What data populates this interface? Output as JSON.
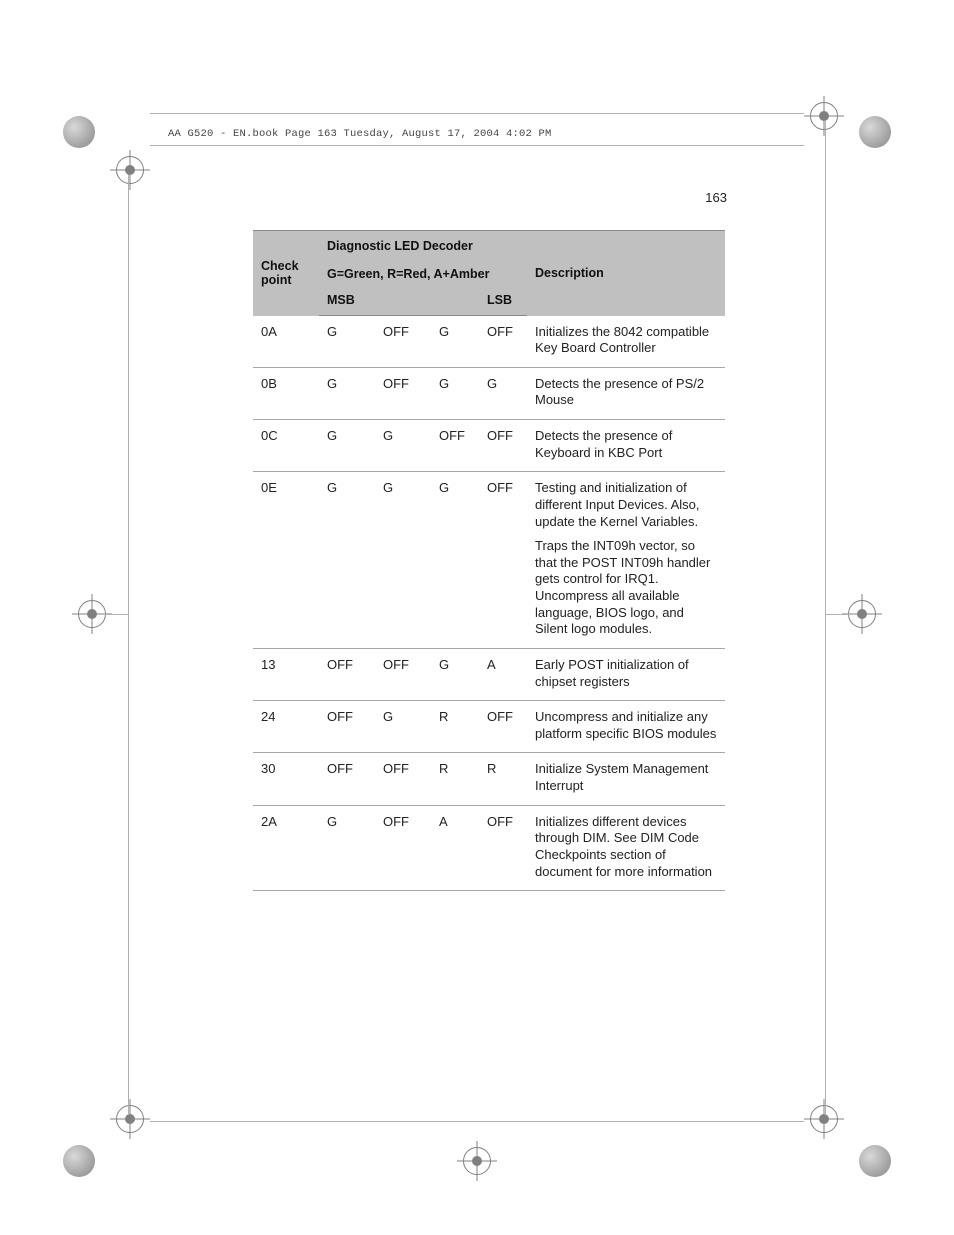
{
  "doc_header": "AA G520 - EN.book  Page 163  Tuesday, August 17, 2004  4:02 PM",
  "page_number": "163",
  "table": {
    "header": {
      "checkpoint": "Check point",
      "diag_title": "Diagnostic LED Decoder",
      "legend": "G=Green, R=Red, A+Amber",
      "msb": "MSB",
      "lsb": "LSB",
      "description": "Description"
    },
    "rows": [
      {
        "cp": "0A",
        "led": [
          "G",
          "OFF",
          "G",
          "OFF"
        ],
        "desc": [
          "Initializes the 8042 compatible Key Board Controller"
        ]
      },
      {
        "cp": "0B",
        "led": [
          "G",
          "OFF",
          "G",
          "G"
        ],
        "desc": [
          "Detects the presence of PS/2 Mouse"
        ]
      },
      {
        "cp": "0C",
        "led": [
          "G",
          "G",
          "OFF",
          "OFF"
        ],
        "desc": [
          "Detects the presence of Keyboard in KBC Port"
        ]
      },
      {
        "cp": "0E",
        "led": [
          "G",
          "G",
          "G",
          "OFF"
        ],
        "desc": [
          "Testing and initialization of different Input Devices. Also, update the Kernel Variables.",
          "Traps the INT09h vector, so that the POST INT09h handler gets control for IRQ1. Uncompress all available language, BIOS logo, and Silent logo modules."
        ]
      },
      {
        "cp": "13",
        "led": [
          "OFF",
          "OFF",
          "G",
          "A"
        ],
        "desc": [
          "Early POST initialization of chipset registers"
        ]
      },
      {
        "cp": "24",
        "led": [
          "OFF",
          "G",
          "R",
          "OFF"
        ],
        "desc": [
          "Uncompress and initialize any platform specific BIOS modules"
        ]
      },
      {
        "cp": "30",
        "led": [
          "OFF",
          "OFF",
          "R",
          "R"
        ],
        "desc": [
          "Initialize System Management Interrupt"
        ]
      },
      {
        "cp": "2A",
        "led": [
          "G",
          "OFF",
          "A",
          "OFF"
        ],
        "desc": [
          "Initializes different devices through DIM. See DIM Code Checkpoints section of document for more information"
        ]
      }
    ]
  }
}
